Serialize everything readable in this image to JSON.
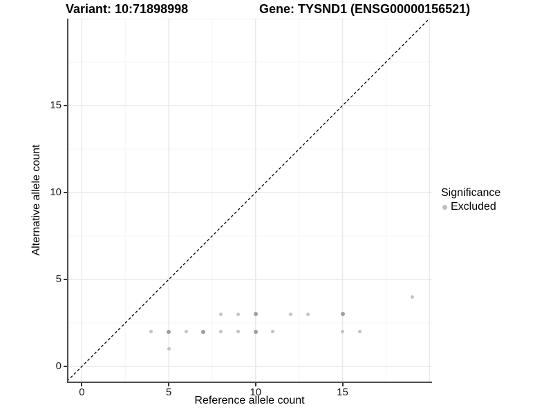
{
  "figure": {
    "background": "#ffffff",
    "title_left": "Variant: 10:71898998",
    "title_right": "Gene: TYSND1 (ENSG00000156521)"
  },
  "chart_data": {
    "type": "scatter",
    "title_left": "Variant: 10:71898998",
    "title_right": "Gene: TYSND1 (ENSG00000156521)",
    "xlabel": "Reference allele count",
    "ylabel": "Alternative allele count",
    "xlim": [
      -0.85,
      20.15
    ],
    "ylim": [
      -0.95,
      20.0
    ],
    "x_ticks": [
      0,
      5,
      10,
      15
    ],
    "y_ticks": [
      0,
      5,
      10,
      15
    ],
    "grid": {
      "on": true,
      "major_x": [
        0,
        5,
        10,
        15,
        20
      ],
      "minor_x": [
        2.5,
        7.5,
        12.5,
        17.5
      ],
      "major_y": [
        0,
        5,
        10,
        15,
        20
      ],
      "minor_y": [
        2.5,
        7.5,
        12.5,
        17.5
      ],
      "major_color": "#e8e8e8",
      "minor_color": "#f4f4f4"
    },
    "axis": {
      "line_color": "#4d4d4d",
      "tick_color": "#333333",
      "text_color": "#1a1a1a"
    },
    "identity_line": {
      "slope": 1,
      "intercept": 0,
      "style": "dashed",
      "dash": "4 3",
      "color": "#000000"
    },
    "point_colors": {
      "light": "#c2c2c2",
      "dark": "#9e9e9e"
    },
    "legend": {
      "title": "Significance",
      "position": "right",
      "items": [
        {
          "label": "Excluded",
          "color": "#bdbdbd"
        }
      ]
    },
    "series": [
      {
        "name": "Excluded",
        "points": [
          {
            "x": 4,
            "y": 2,
            "shade": "light"
          },
          {
            "x": 5,
            "y": 1,
            "shade": "light"
          },
          {
            "x": 5,
            "y": 2,
            "shade": "dark"
          },
          {
            "x": 6,
            "y": 2,
            "shade": "light"
          },
          {
            "x": 7,
            "y": 2,
            "shade": "dark"
          },
          {
            "x": 8,
            "y": 2,
            "shade": "light"
          },
          {
            "x": 8,
            "y": 3,
            "shade": "light"
          },
          {
            "x": 9,
            "y": 2,
            "shade": "light"
          },
          {
            "x": 9,
            "y": 3,
            "shade": "light"
          },
          {
            "x": 10,
            "y": 2,
            "shade": "dark"
          },
          {
            "x": 10,
            "y": 3,
            "shade": "dark"
          },
          {
            "x": 11,
            "y": 2,
            "shade": "light"
          },
          {
            "x": 12,
            "y": 3,
            "shade": "light"
          },
          {
            "x": 13,
            "y": 3,
            "shade": "light"
          },
          {
            "x": 15,
            "y": 2,
            "shade": "light"
          },
          {
            "x": 15,
            "y": 3,
            "shade": "dark"
          },
          {
            "x": 16,
            "y": 2,
            "shade": "light"
          },
          {
            "x": 19,
            "y": 4,
            "shade": "light"
          }
        ]
      }
    ]
  }
}
